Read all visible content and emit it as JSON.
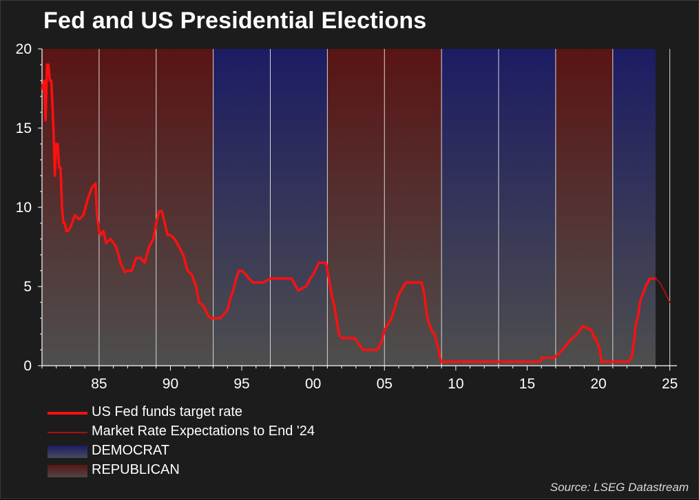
{
  "title": "Fed and US Presidential Elections",
  "source": "Source: LSEG Datastream",
  "legend": [
    {
      "key": "fed",
      "label": "US Fed funds target rate"
    },
    {
      "key": "exp",
      "label": "Market Rate Expectations to End '24"
    },
    {
      "key": "dem",
      "label": "DEMOCRAT"
    },
    {
      "key": "rep",
      "label": "REPUBLICAN"
    }
  ],
  "colors": {
    "fed_line": "#ff1010",
    "expectations_line": "#a81010",
    "democrat_top": "#1c1c64",
    "republican_top": "#5a1414",
    "gradient_bottom": "#4e4e4e",
    "text": "#ffffff"
  },
  "chart_data": {
    "type": "line",
    "title": "Fed and US Presidential Elections",
    "xlabel": "",
    "ylabel": "",
    "xlim": [
      1981.0,
      2025.5
    ],
    "ylim": [
      0,
      20
    ],
    "x_ticks": [
      1985,
      1990,
      1995,
      2000,
      2005,
      2010,
      2015,
      2020,
      2025
    ],
    "x_tick_labels": [
      "85",
      "90",
      "95",
      "00",
      "05",
      "10",
      "15",
      "20",
      "25"
    ],
    "y_ticks": [
      0,
      5,
      10,
      15,
      20
    ],
    "y_tick_labels": [
      "0",
      "5",
      "10",
      "15",
      "20"
    ],
    "vertical_lines": [
      1985,
      1989,
      1993,
      1997,
      2001,
      2005,
      2009,
      2013,
      2017,
      2021,
      2025
    ],
    "bands": [
      {
        "party": "REPUBLICAN",
        "start": 1981.0,
        "end": 1993.0
      },
      {
        "party": "DEMOCRAT",
        "start": 1993.0,
        "end": 2001.0
      },
      {
        "party": "REPUBLICAN",
        "start": 2001.0,
        "end": 2009.0
      },
      {
        "party": "DEMOCRAT",
        "start": 2009.0,
        "end": 2017.0
      },
      {
        "party": "REPUBLICAN",
        "start": 2017.0,
        "end": 2021.0
      },
      {
        "party": "DEMOCRAT",
        "start": 2021.0,
        "end": 2024.0
      }
    ],
    "series": [
      {
        "name": "US Fed funds target rate",
        "x": [
          1981.0,
          1981.15,
          1981.25,
          1981.35,
          1981.45,
          1981.55,
          1981.65,
          1981.8,
          1981.9,
          1982.0,
          1982.1,
          1982.2,
          1982.3,
          1982.4,
          1982.5,
          1982.6,
          1982.7,
          1982.8,
          1983.0,
          1983.3,
          1983.6,
          1983.9,
          1984.2,
          1984.5,
          1984.75,
          1984.85,
          1985.0,
          1985.1,
          1985.3,
          1985.5,
          1985.8,
          1986.2,
          1986.5,
          1986.8,
          1987.0,
          1987.3,
          1987.6,
          1987.9,
          1988.2,
          1988.5,
          1988.8,
          1989.0,
          1989.2,
          1989.4,
          1989.6,
          1989.8,
          1990.0,
          1990.3,
          1990.6,
          1990.9,
          1991.2,
          1991.5,
          1991.8,
          1992.0,
          1992.3,
          1992.6,
          1992.8,
          1993.0,
          1993.5,
          1994.0,
          1994.2,
          1994.4,
          1994.6,
          1994.8,
          1995.0,
          1995.3,
          1995.5,
          1995.8,
          1996.0,
          1996.5,
          1997.0,
          1997.2,
          1998.5,
          1998.8,
          1998.95,
          1999.5,
          1999.8,
          2000.0,
          2000.4,
          2000.9,
          2001.1,
          2001.3,
          2001.5,
          2001.8,
          2002.0,
          2002.9,
          2003.5,
          2004.5,
          2004.8,
          2005.0,
          2005.5,
          2006.0,
          2006.5,
          2007.6,
          2007.8,
          2008.0,
          2008.3,
          2008.5,
          2008.8,
          2008.95,
          2009.0,
          2015.9,
          2016.0,
          2016.9,
          2017.2,
          2017.5,
          2017.9,
          2018.2,
          2018.5,
          2018.9,
          2019.5,
          2019.6,
          2019.7,
          2019.8,
          2020.1,
          2020.2,
          2022.1,
          2022.3,
          2022.5,
          2022.6,
          2022.8,
          2022.9,
          2023.1,
          2023.3,
          2023.6,
          2024.0
        ],
        "y": [
          17.5,
          18.0,
          15.5,
          19.0,
          19.0,
          18.0,
          18.0,
          15.0,
          12.0,
          14.0,
          14.0,
          12.5,
          12.5,
          10.0,
          9.0,
          9.0,
          8.5,
          8.5,
          8.75,
          9.5,
          9.25,
          9.5,
          10.5,
          11.25,
          11.5,
          9.5,
          8.5,
          8.25,
          8.5,
          7.75,
          8.0,
          7.5,
          6.5,
          5.9,
          6.0,
          6.0,
          6.8,
          6.8,
          6.5,
          7.5,
          8.0,
          9.0,
          9.75,
          9.75,
          9.0,
          8.25,
          8.25,
          8.0,
          7.5,
          7.0,
          6.0,
          5.75,
          5.0,
          4.0,
          3.8,
          3.25,
          3.0,
          3.0,
          3.0,
          3.5,
          4.25,
          4.75,
          5.5,
          6.0,
          6.0,
          5.75,
          5.5,
          5.25,
          5.25,
          5.25,
          5.5,
          5.5,
          5.5,
          5.0,
          4.75,
          5.0,
          5.5,
          5.75,
          6.5,
          6.5,
          5.5,
          4.5,
          3.75,
          2.0,
          1.75,
          1.75,
          1.0,
          1.0,
          1.5,
          2.25,
          3.0,
          4.5,
          5.25,
          5.25,
          4.5,
          3.0,
          2.25,
          2.0,
          1.0,
          0.25,
          0.25,
          0.25,
          0.5,
          0.5,
          0.75,
          1.0,
          1.5,
          1.75,
          2.0,
          2.5,
          2.25,
          2.0,
          1.75,
          1.75,
          1.0,
          0.25,
          0.25,
          0.5,
          1.5,
          2.5,
          3.25,
          4.0,
          4.5,
          5.0,
          5.5,
          5.5
        ]
      },
      {
        "name": "Market Rate Expectations to End '24",
        "x": [
          2024.0,
          2024.3,
          2024.6,
          2025.0
        ],
        "y": [
          5.5,
          5.25,
          4.75,
          4.0
        ]
      }
    ]
  }
}
